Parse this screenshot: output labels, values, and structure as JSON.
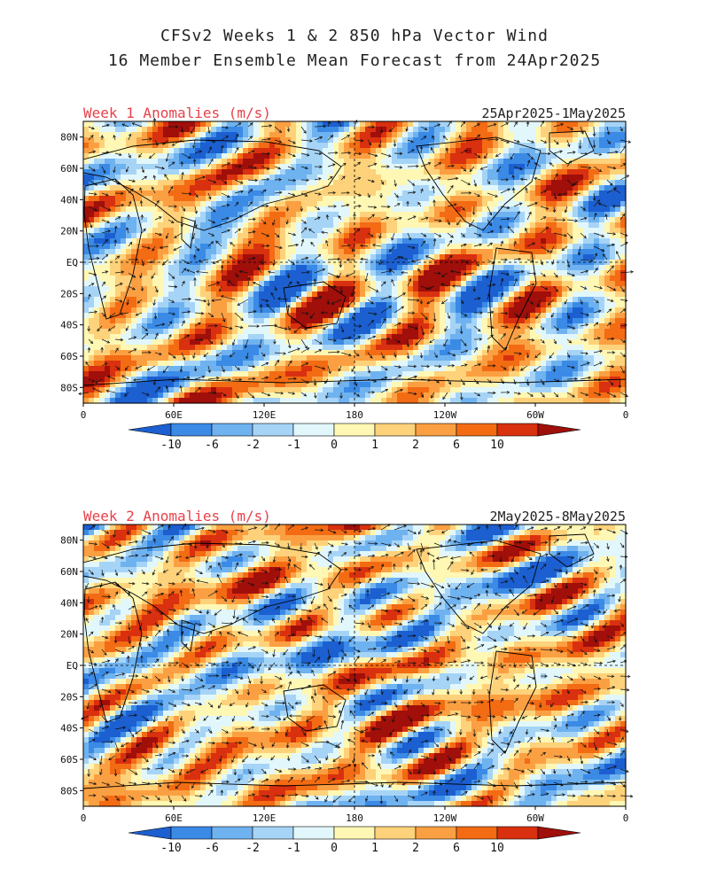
{
  "header": {
    "title": "CFSv2 Weeks 1 & 2 850 hPa Vector Wind",
    "subtitle": "16 Member Ensemble Mean Forecast from 24Apr2025"
  },
  "colors": {
    "title_red": "#e8414a",
    "land_outline": "#000000",
    "scale": [
      "#1c5fd0",
      "#3a8ae6",
      "#6fb2f0",
      "#a6d4f6",
      "#e2f7fb",
      "#fff7b4",
      "#fdd27a",
      "#fba042",
      "#f36b13",
      "#d93010",
      "#a00f0a"
    ]
  },
  "colorbar": {
    "labels": [
      "-10",
      "-6",
      "-2",
      "-1",
      "0",
      "1",
      "2",
      "6",
      "10"
    ]
  },
  "axes": {
    "lat_labels": [
      "80N",
      "60N",
      "40N",
      "20N",
      "EQ",
      "20S",
      "40S",
      "60S",
      "80S"
    ],
    "lon_labels": [
      "0",
      "60E",
      "120E",
      "180",
      "120W",
      "60W",
      "0"
    ]
  },
  "panels": [
    {
      "id": "week1",
      "title": "Week 1 Anomalies (m/s)",
      "date_range": "25Apr2025-1May2025",
      "seed": 11
    },
    {
      "id": "week2",
      "title": "Week 2 Anomalies (m/s)",
      "date_range": "2May2025-8May2025",
      "seed": 47
    }
  ]
}
